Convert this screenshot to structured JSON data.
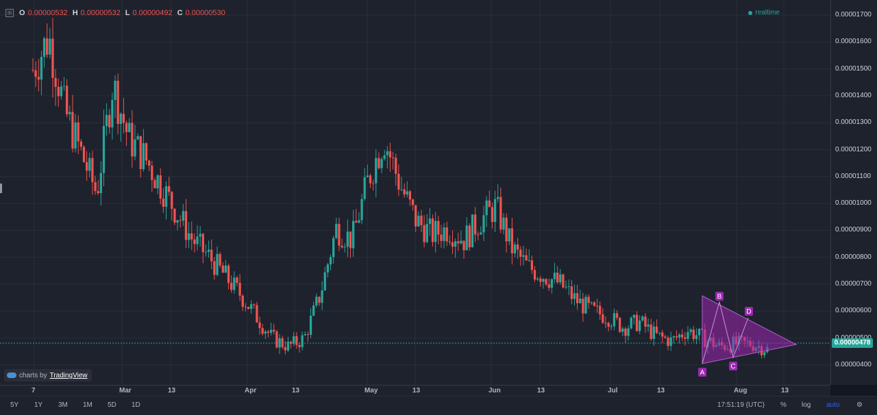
{
  "ohlc": {
    "o_label": "O",
    "o_value": "0.00000532",
    "h_label": "H",
    "h_value": "0.00000532",
    "l_label": "L",
    "l_value": "0.00000492",
    "c_label": "C",
    "c_value": "0.00000530"
  },
  "status": {
    "realtime": "realtime"
  },
  "brand": {
    "prefix": "charts by",
    "name": "TradingView"
  },
  "price_axis": {
    "ticks": [
      "0.00001700",
      "0.00001600",
      "0.00001500",
      "0.00001400",
      "0.00001300",
      "0.00001200",
      "0.00001100",
      "0.00001000",
      "0.00000900",
      "0.00000800",
      "0.00000700",
      "0.00000600",
      "0.00000500",
      "0.00000400"
    ],
    "last_price": "0.00000478"
  },
  "time_axis": {
    "labels": [
      "7",
      "Mar",
      "13",
      "Apr",
      "13",
      "May",
      "13",
      "Jun",
      "13",
      "Jul",
      "13",
      "Aug",
      "13"
    ]
  },
  "toolbar": {
    "timeframes": [
      "5Y",
      "1Y",
      "3M",
      "1M",
      "5D",
      "1D"
    ],
    "clock": "17:51:19 (UTC)",
    "percent": "%",
    "log": "log",
    "auto": "auto"
  },
  "pattern": {
    "points": [
      "A",
      "B",
      "C",
      "D"
    ],
    "color": "#9c27b0"
  },
  "colors": {
    "up": "#26a69a",
    "down": "#ef5350",
    "bg": "#1e222d",
    "grid": "#2a2e39",
    "last_line": "#26a69a"
  },
  "chart_data": {
    "type": "candlestick",
    "title": "",
    "x_range": [
      "Feb 7",
      "Aug 14"
    ],
    "ylim": [
      3.4e-06,
      1.77e-05
    ],
    "last_price": 4.78e-06,
    "close_series": [
      1.5e-05,
      1.62e-05,
      1.35e-05,
      1.2e-05,
      1.05e-05,
      1.45e-05,
      1.25e-05,
      1.18e-05,
      1.08e-05,
      9.8e-06,
      8.8e-06,
      8.2e-06,
      7.5e-06,
      6.8e-06,
      6e-06,
      5.2e-06,
      4.9e-06,
      5.2e-06,
      6.8e-06,
      9.2e-06,
      8.8e-06,
      1.1e-05,
      1.25e-05,
      1.08e-05,
      9.5e-06,
      9e-06,
      9.2e-06,
      8.8e-06,
      9.5e-06,
      1e-05,
      8.5e-06,
      7.8e-06,
      7.5e-06,
      7.2e-06,
      6.6e-06,
      6.2e-06,
      6e-06,
      5.6e-06,
      5.8e-06,
      5.3e-06,
      5.1e-06,
      5.5e-06,
      5.2e-06,
      4.9e-06,
      5e-06,
      5e-06,
      4.8e-06
    ],
    "annotation": {
      "type": "triangle",
      "labels": [
        "A",
        "B",
        "C",
        "D"
      ]
    }
  }
}
